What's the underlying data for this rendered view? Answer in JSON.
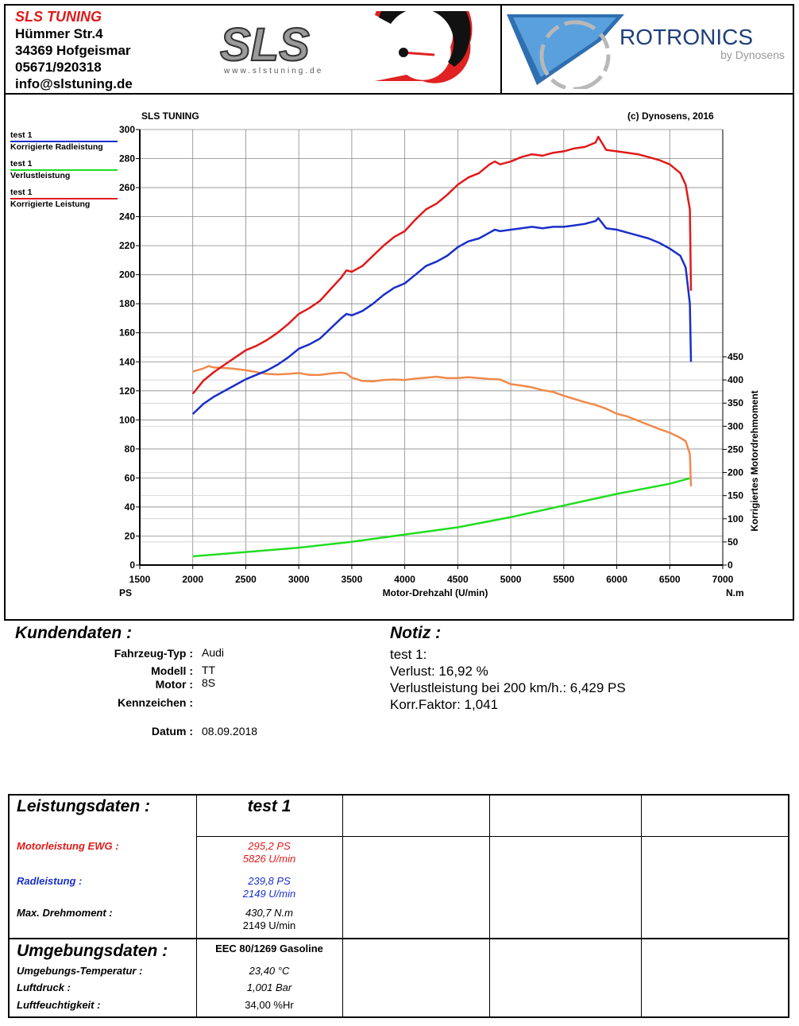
{
  "header": {
    "company_name": "SLS TUNING",
    "street": "Hümmer Str.4",
    "city": "34369 Hofgeismar",
    "phone": "05671/920318",
    "email": "info@slstuning.de",
    "logo_sls_text": "SLS",
    "logo_sls_url": "www.slstuning.de",
    "logo_rotronics_text": "ROTRONICS",
    "logo_rotronics_sub": "by Dynosens"
  },
  "chart_data": {
    "type": "line",
    "title": "SLS TUNING",
    "copyright": "(c) Dynosens, 2016",
    "xlabel": "Motor-Drehzahl (U/min)",
    "xunit": "PS",
    "x2unit": "N.m",
    "ylabel_right": "Korrigiertes Motordrehmoment",
    "xlim": [
      1500,
      7000
    ],
    "ylim_left": [
      0,
      300
    ],
    "ylim_right": [
      0,
      450
    ],
    "x_ticks": [
      "1500",
      "2000",
      "2500",
      "3000",
      "3500",
      "4000",
      "4500",
      "5000",
      "5500",
      "6000",
      "6500",
      "7000"
    ],
    "y_left_ticks": [
      "0",
      "20",
      "40",
      "60",
      "80",
      "100",
      "120",
      "140",
      "160",
      "180",
      "200",
      "220",
      "240",
      "260",
      "280",
      "300"
    ],
    "y_right_ticks": [
      "0",
      "50",
      "100",
      "150",
      "200",
      "250",
      "300",
      "350",
      "400",
      "450"
    ],
    "grid": true,
    "legend": [
      {
        "run": "test 1",
        "name": "Korrigierte Radleistung",
        "color": "#1a2fc8"
      },
      {
        "run": "test 1",
        "name": "Verlustleistung",
        "color": "#22dd22"
      },
      {
        "run": "test 1",
        "name": "Korrigierte Leistung",
        "color": "#e01a1a"
      }
    ],
    "series": [
      {
        "name": "Korrigierte Leistung",
        "axis": "left",
        "color": "#e01a1a",
        "x": [
          2000,
          2100,
          2200,
          2300,
          2400,
          2500,
          2600,
          2700,
          2800,
          2900,
          3000,
          3100,
          3200,
          3300,
          3400,
          3450,
          3500,
          3600,
          3700,
          3800,
          3900,
          4000,
          4100,
          4200,
          4300,
          4400,
          4500,
          4600,
          4700,
          4800,
          4850,
          4900,
          5000,
          5100,
          5200,
          5300,
          5400,
          5500,
          5600,
          5700,
          5800,
          5826,
          5900,
          6000,
          6100,
          6200,
          6300,
          6400,
          6500,
          6600,
          6650,
          6690,
          6700
        ],
        "y": [
          118,
          127,
          133,
          138,
          143,
          148,
          151,
          155,
          160,
          166,
          173,
          177,
          182,
          190,
          198,
          203,
          202,
          206,
          213,
          220,
          226,
          230,
          238,
          245,
          249,
          255,
          262,
          267,
          270,
          276,
          278,
          276,
          278,
          281,
          283,
          282,
          284,
          285,
          287,
          288,
          291,
          295,
          286,
          285,
          284,
          283,
          281,
          279,
          276,
          270,
          262,
          245,
          189
        ]
      },
      {
        "name": "Korrigierte Radleistung",
        "axis": "left",
        "color": "#1a2fc8",
        "x": [
          2000,
          2100,
          2200,
          2300,
          2400,
          2500,
          2600,
          2700,
          2800,
          2900,
          3000,
          3100,
          3200,
          3300,
          3400,
          3450,
          3500,
          3600,
          3700,
          3800,
          3900,
          4000,
          4100,
          4200,
          4300,
          4400,
          4500,
          4600,
          4700,
          4800,
          4850,
          4900,
          5000,
          5100,
          5200,
          5300,
          5400,
          5500,
          5600,
          5700,
          5800,
          5826,
          5900,
          6000,
          6100,
          6200,
          6300,
          6400,
          6500,
          6600,
          6650,
          6690,
          6700
        ],
        "y": [
          104,
          111,
          116,
          120,
          124,
          128,
          131,
          134,
          138,
          143,
          149,
          152,
          156,
          163,
          170,
          173,
          172,
          175,
          180,
          186,
          191,
          194,
          200,
          206,
          209,
          213,
          219,
          223,
          225,
          229,
          231,
          230,
          231,
          232,
          233,
          232,
          233,
          233,
          234,
          235,
          237,
          239,
          232,
          231,
          229,
          227,
          225,
          222,
          218,
          213,
          205,
          180,
          140
        ]
      },
      {
        "name": "Verlustleistung",
        "axis": "left",
        "color": "#22dd22",
        "x": [
          2000,
          2500,
          3000,
          3500,
          4000,
          4500,
          5000,
          5500,
          6000,
          6500,
          6700
        ],
        "y": [
          6,
          9,
          12,
          16,
          21,
          26,
          33,
          41,
          49,
          56,
          60
        ]
      },
      {
        "name": "Korrigiertes Motordrehmoment",
        "axis": "right",
        "color": "#f08a4b",
        "x": [
          2000,
          2100,
          2149,
          2200,
          2300,
          2400,
          2500,
          2600,
          2700,
          2800,
          2900,
          3000,
          3100,
          3200,
          3300,
          3400,
          3450,
          3500,
          3600,
          3700,
          3800,
          3900,
          4000,
          4100,
          4200,
          4300,
          4400,
          4500,
          4600,
          4700,
          4800,
          4900,
          5000,
          5100,
          5200,
          5300,
          5400,
          5500,
          5600,
          5700,
          5800,
          5900,
          6000,
          6100,
          6200,
          6300,
          6400,
          6500,
          6600,
          6650,
          6690,
          6700
        ],
        "y": [
          418,
          425,
          430,
          427,
          426,
          424,
          421,
          417,
          413,
          412,
          413,
          415,
          411,
          411,
          414,
          416,
          414,
          405,
          398,
          397,
          400,
          401,
          400,
          403,
          405,
          407,
          404,
          404,
          406,
          404,
          402,
          401,
          391,
          388,
          384,
          378,
          374,
          366,
          359,
          352,
          346,
          338,
          327,
          321,
          312,
          303,
          294,
          286,
          275,
          268,
          240,
          170
        ]
      }
    ]
  },
  "kunde": {
    "title": "Kundendaten :",
    "fahrzeug_label": "Fahrzeug-Typ :",
    "fahrzeug_value": "Audi",
    "modell_label": "Modell :",
    "modell_value": "TT",
    "motor_label": "Motor :",
    "motor_value": "8S",
    "kennzeichen_label": "Kennzeichen :",
    "kennzeichen_value": "",
    "datum_label": "Datum :",
    "datum_value": "08.09.2018"
  },
  "notiz": {
    "title": "Notiz :",
    "line1": "test 1:",
    "line2": "Verlust: 16,92 %",
    "line3": "Verlustleistung bei 200 km/h.: 6,429 PS",
    "line4": "Korr.Faktor: 1,041"
  },
  "leistung": {
    "title": "Leistungsdaten :",
    "run_name": "test 1",
    "motorleistung_label": "Motorleistung EWG :",
    "motorleistung_value": "295,2 PS",
    "motorleistung_rpm": "5826 U/min",
    "radleistung_label": "Radleistung :",
    "radleistung_value": "239,8 PS",
    "radleistung_rpm": "2149 U/min",
    "drehmoment_label": "Max. Drehmoment :",
    "drehmoment_value": "430,7 N.m",
    "drehmoment_rpm": "2149 U/min"
  },
  "umgebung": {
    "title": "Umgebungsdaten :",
    "norm": "EEC 80/1269 Gasoline",
    "temp_label": "Umgebungs-Temperatur :",
    "temp_value": "23,40 °C",
    "druck_label": "Luftdruck :",
    "druck_value": "1,001 Bar",
    "feuchte_label": "Luftfeuchtigkeit :",
    "feuchte_value": "34,00 %Hr"
  }
}
